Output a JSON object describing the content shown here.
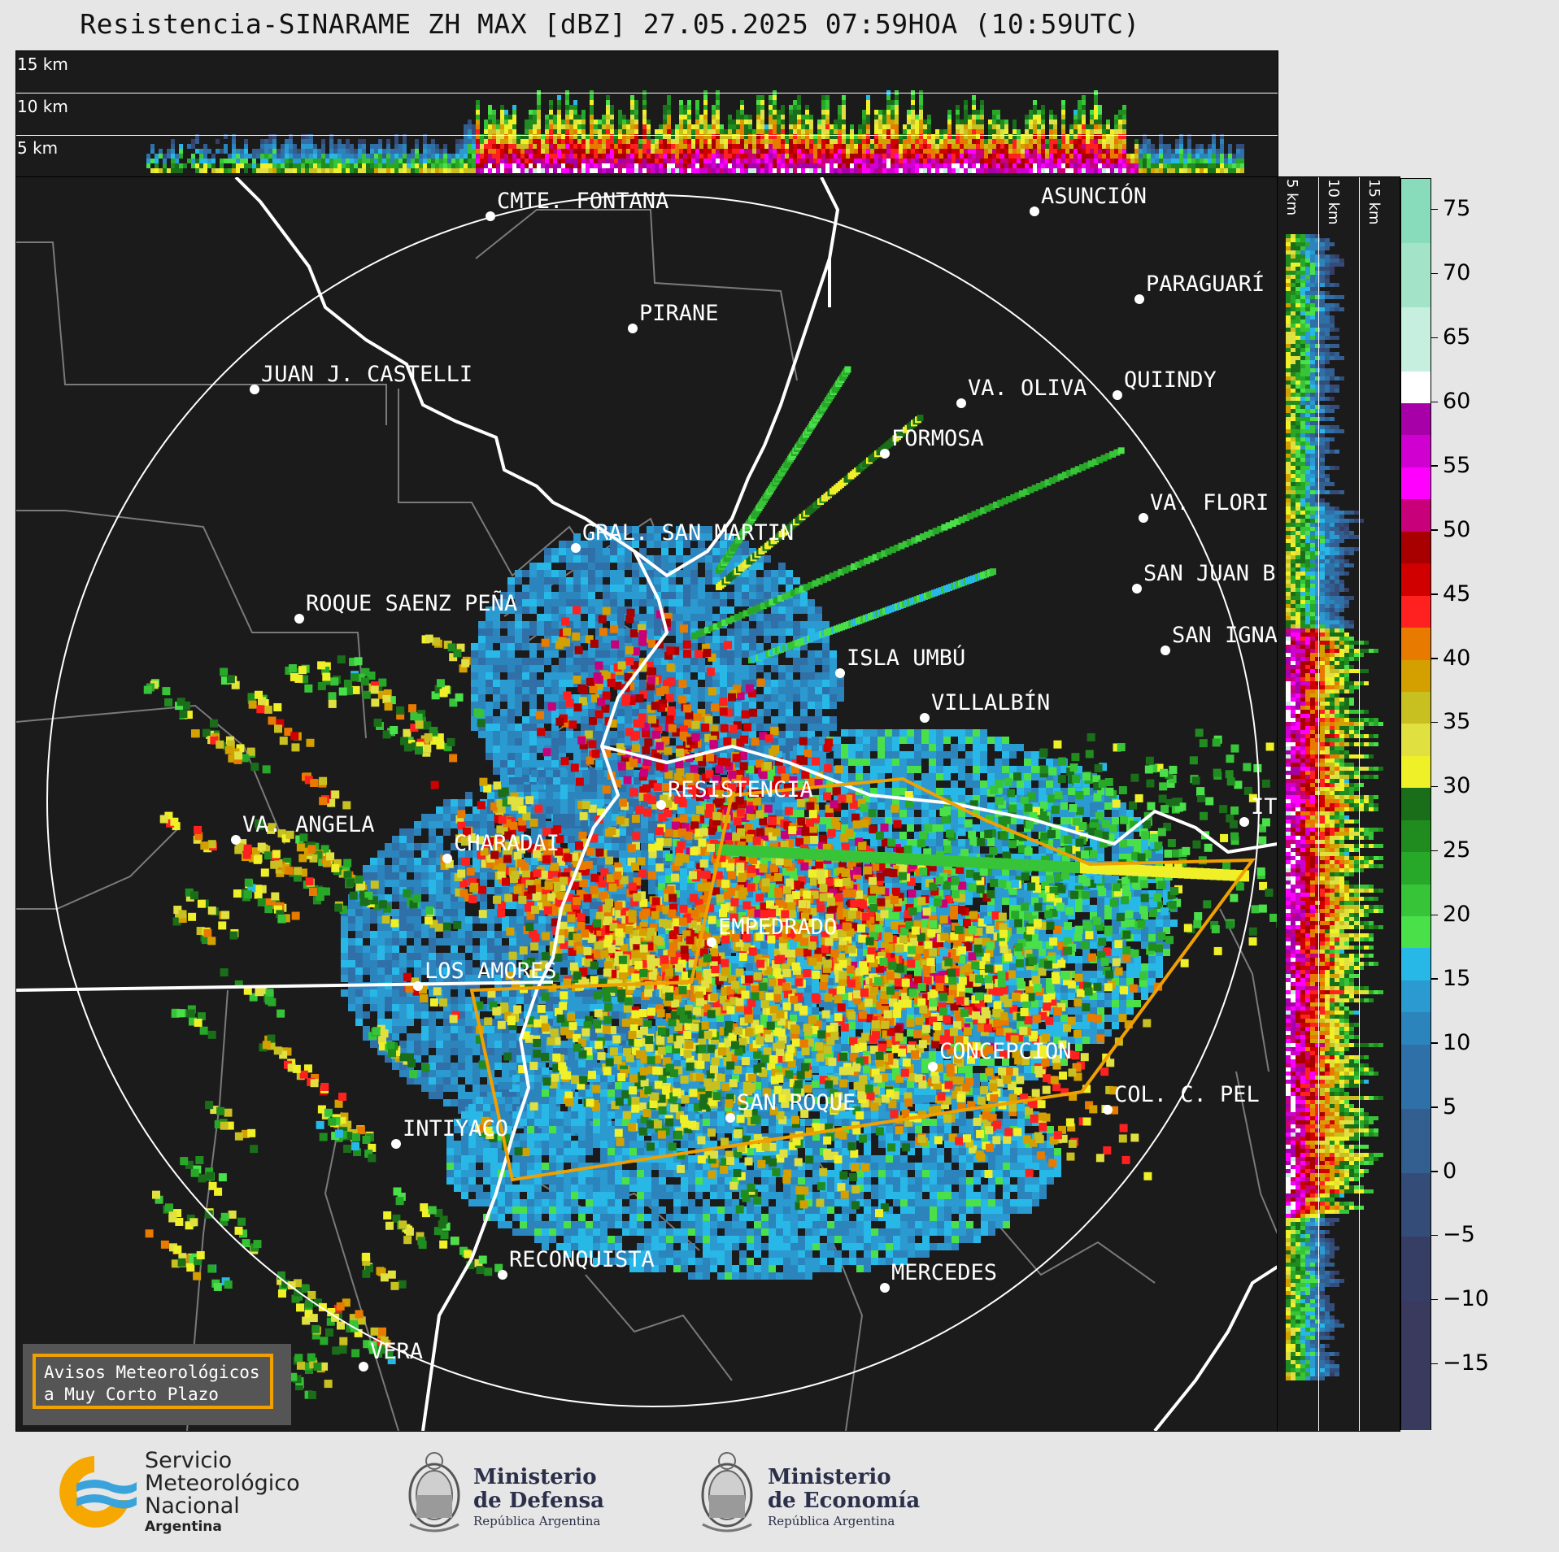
{
  "title": "Resistencia-SINARAME ZH MAX [dBZ] 27.05.2025 07:59HOA (10:59UTC)",
  "top_cross_section": {
    "height_labels": [
      "15 km",
      "10 km",
      "5 km"
    ]
  },
  "right_cross_section": {
    "height_labels": [
      "5 km",
      "10 km",
      "15 km"
    ]
  },
  "colorbar": {
    "unit": "dBZ",
    "ticks": [
      "75",
      "70",
      "65",
      "60",
      "55",
      "50",
      "45",
      "40",
      "35",
      "30",
      "25",
      "20",
      "15",
      "10",
      "5",
      "0",
      "−5",
      "−10",
      "−15"
    ],
    "stops": [
      {
        "from": 72.5,
        "color": "#88dcbc"
      },
      {
        "from": 67.5,
        "color": "#a3e4c9"
      },
      {
        "from": 62.5,
        "color": "#c6efdf"
      },
      {
        "from": 60,
        "color": "#ffffff"
      },
      {
        "from": 57.5,
        "color": "#a800a8"
      },
      {
        "from": 55,
        "color": "#d000d0"
      },
      {
        "from": 52.5,
        "color": "#ff00ff"
      },
      {
        "from": 50,
        "color": "#c8007a"
      },
      {
        "from": 47.5,
        "color": "#a80000"
      },
      {
        "from": 45,
        "color": "#d00000"
      },
      {
        "from": 42.5,
        "color": "#ff2020"
      },
      {
        "from": 40,
        "color": "#e87a00"
      },
      {
        "from": 37.5,
        "color": "#d4a000"
      },
      {
        "from": 35,
        "color": "#c8c020"
      },
      {
        "from": 32.5,
        "color": "#e0e040"
      },
      {
        "from": 30,
        "color": "#f0f028"
      },
      {
        "from": 27.5,
        "color": "#1a6e1a"
      },
      {
        "from": 25,
        "color": "#208c20"
      },
      {
        "from": 22.5,
        "color": "#28a828"
      },
      {
        "from": 20,
        "color": "#38c438"
      },
      {
        "from": 17.5,
        "color": "#4ae04a"
      },
      {
        "from": 15,
        "color": "#28b8e8"
      },
      {
        "from": 12.5,
        "color": "#2a9ad0"
      },
      {
        "from": 10,
        "color": "#2c84bc"
      },
      {
        "from": 5,
        "color": "#3070a8"
      },
      {
        "from": 0,
        "color": "#325e90"
      },
      {
        "from": -5,
        "color": "#344c78"
      },
      {
        "from": -10,
        "color": "#363e66"
      },
      {
        "from": -20,
        "color": "#3a3a5e"
      }
    ]
  },
  "cities": [
    {
      "name": "CMTE. FONTANA",
      "dot": [
        583,
        48
      ]
    },
    {
      "name": "ASUNCIÓN",
      "dot": [
        1252,
        42
      ]
    },
    {
      "name": "PIRANE",
      "dot": [
        758,
        186
      ]
    },
    {
      "name": "PARAGUARÍ",
      "dot": [
        1381,
        150
      ]
    },
    {
      "name": "JUAN J. CASTELLI",
      "dot": [
        293,
        261
      ]
    },
    {
      "name": "VA. OLIVA",
      "dot": [
        1162,
        278
      ]
    },
    {
      "name": "QUIINDY",
      "dot": [
        1354,
        268
      ]
    },
    {
      "name": "FORMOSA",
      "dot": [
        1068,
        340
      ]
    },
    {
      "name": "VA. FLORI",
      "dot": [
        1386,
        419
      ]
    },
    {
      "name": "GRAL. SAN MARTIN",
      "dot": [
        688,
        456
      ]
    },
    {
      "name": "SAN JUAN B",
      "dot": [
        1378,
        506
      ]
    },
    {
      "name": "ROQUE SAENZ PEÑA",
      "dot": [
        348,
        543
      ]
    },
    {
      "name": "SAN IGNA",
      "dot": [
        1413,
        582
      ]
    },
    {
      "name": "ISLA UMBÚ",
      "dot": [
        1013,
        610
      ]
    },
    {
      "name": "VILLALBÍN",
      "dot": [
        1117,
        665
      ]
    },
    {
      "name": "RESISTENCIA",
      "dot": [
        793,
        772
      ]
    },
    {
      "name": "IT",
      "dot": [
        1510,
        793
      ]
    },
    {
      "name": "VA. ANGELA",
      "dot": [
        270,
        815
      ]
    },
    {
      "name": "CHARADAI",
      "dot": [
        530,
        838
      ]
    },
    {
      "name": "EMPEDRADO",
      "dot": [
        855,
        941
      ]
    },
    {
      "name": "LOS AMORES",
      "dot": [
        494,
        995
      ]
    },
    {
      "name": "CONCEPCION",
      "dot": [
        1127,
        1094
      ]
    },
    {
      "name": "SAN ROQUE",
      "dot": [
        878,
        1157
      ]
    },
    {
      "name": "COL. C. PEL",
      "dot": [
        1342,
        1147
      ]
    },
    {
      "name": "INTIYACO",
      "dot": [
        467,
        1189
      ]
    },
    {
      "name": "RECONQUISTA",
      "dot": [
        598,
        1350
      ]
    },
    {
      "name": "MERCEDES",
      "dot": [
        1068,
        1366
      ]
    },
    {
      "name": "VERA",
      "dot": [
        427,
        1463
      ]
    }
  ],
  "aviso": {
    "line1": "Avisos Meteorológicos",
    "line2": "a Muy Corto Plazo"
  },
  "footer": {
    "smn": {
      "line1": "Servicio",
      "line2": "Meteorológico",
      "line3": "Nacional",
      "line4": "Argentina"
    },
    "defensa": {
      "line1": "Ministerio",
      "line2": "de Defensa",
      "line3": "República Argentina"
    },
    "economia": {
      "line1": "Ministerio",
      "line2": "de Economía",
      "line3": "República Argentina"
    }
  },
  "colors": {
    "panel_bg": "#1b1b1b",
    "warning_polygon": "#f0a000",
    "borders": "#ffffff",
    "departments": "#7a7a7a"
  }
}
